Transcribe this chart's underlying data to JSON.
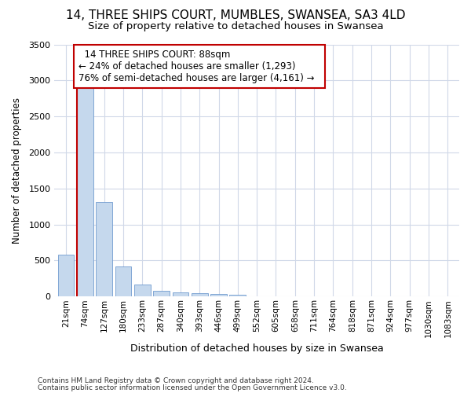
{
  "title": "14, THREE SHIPS COURT, MUMBLES, SWANSEA, SA3 4LD",
  "subtitle": "Size of property relative to detached houses in Swansea",
  "xlabel": "Distribution of detached houses by size in Swansea",
  "ylabel": "Number of detached properties",
  "footnote1": "Contains HM Land Registry data © Crown copyright and database right 2024.",
  "footnote2": "Contains public sector information licensed under the Open Government Licence v3.0.",
  "bar_labels": [
    "21sqm",
    "74sqm",
    "127sqm",
    "180sqm",
    "233sqm",
    "287sqm",
    "340sqm",
    "393sqm",
    "446sqm",
    "499sqm",
    "552sqm",
    "605sqm",
    "658sqm",
    "711sqm",
    "764sqm",
    "818sqm",
    "871sqm",
    "924sqm",
    "977sqm",
    "1030sqm",
    "1083sqm"
  ],
  "bar_values": [
    580,
    2920,
    1310,
    420,
    165,
    75,
    55,
    45,
    35,
    30,
    0,
    0,
    0,
    0,
    0,
    0,
    0,
    0,
    0,
    0,
    0
  ],
  "bar_color": "#c5d8ed",
  "bar_edge_color": "#5b8cc8",
  "highlight_bar_index": 1,
  "highlight_color": "#c00000",
  "annotation_title": "14 THREE SHIPS COURT: 88sqm",
  "annotation_line1": "← 24% of detached houses are smaller (1,293)",
  "annotation_line2": "76% of semi-detached houses are larger (4,161) →",
  "annotation_box_color": "#c00000",
  "ylim": [
    0,
    3500
  ],
  "yticks": [
    0,
    500,
    1000,
    1500,
    2000,
    2500,
    3000,
    3500
  ],
  "bg_color": "#ffffff",
  "plot_bg_color": "#ffffff",
  "grid_color": "#d0d8e8",
  "title_fontsize": 11,
  "subtitle_fontsize": 9.5,
  "annotation_fontsize": 8.5
}
